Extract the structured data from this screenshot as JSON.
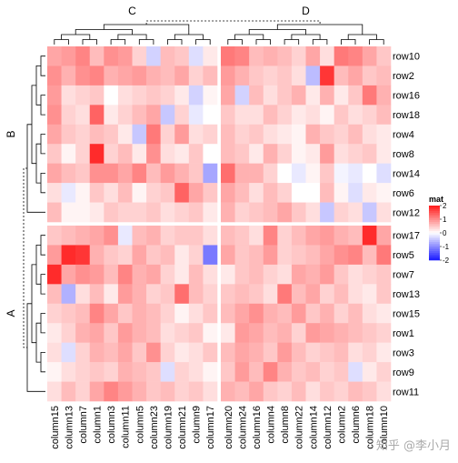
{
  "chart_data": {
    "type": "heatmap",
    "legend": {
      "title": "mat",
      "ticks": [
        "2",
        "1",
        "0",
        "-1",
        "-2"
      ],
      "colors": {
        "low": "#2020ff",
        "mid": "#ffffff",
        "high": "#ff2020"
      }
    },
    "column_groups": [
      {
        "label": "C",
        "columns": [
          "column15",
          "column13",
          "column7",
          "column1",
          "column3",
          "column11",
          "column5",
          "column23",
          "column19",
          "column21",
          "column9",
          "column17"
        ]
      },
      {
        "label": "D",
        "columns": [
          "column20",
          "column24",
          "column16",
          "column4",
          "column8",
          "column22",
          "column14",
          "column12",
          "column2",
          "column6",
          "column18",
          "column10"
        ]
      }
    ],
    "row_groups": [
      {
        "label": "B",
        "rows": [
          "row10",
          "row2",
          "row16",
          "row18",
          "row4",
          "row8",
          "row14",
          "row6",
          "row12"
        ]
      },
      {
        "label": "A",
        "rows": [
          "row17",
          "row5",
          "row7",
          "row13",
          "row15",
          "row1",
          "row3",
          "row9",
          "row11"
        ]
      }
    ],
    "values": [
      [
        0.8,
        0.9,
        1.1,
        0.6,
        1.0,
        0.9,
        0.4,
        -0.4,
        0.6,
        0.5,
        -0.3,
        0.2,
        1.2,
        1.1,
        0.6,
        0.7,
        0.6,
        0.4,
        0.8,
        0.3,
        1.2,
        1.1,
        0.8,
        0.5
      ],
      [
        1.0,
        0.7,
        1.0,
        1.1,
        0.7,
        0.8,
        0.9,
        0.7,
        0.6,
        0.8,
        0.4,
        0.6,
        0.9,
        0.7,
        0.5,
        0.4,
        0.5,
        0.3,
        -0.6,
        1.8,
        0.6,
        0.8,
        0.5,
        0.6
      ],
      [
        0.9,
        0.3,
        0.4,
        0.5,
        0.0,
        0.3,
        0.4,
        0.5,
        0.4,
        0.2,
        -0.4,
        0.1,
        0.8,
        -0.4,
        0.6,
        0.3,
        0.5,
        0.7,
        0.2,
        0.7,
        0.2,
        0.5,
        1.2,
        0.7
      ],
      [
        1.0,
        0.4,
        0.3,
        1.4,
        0.2,
        0.4,
        0.6,
        0.8,
        -0.5,
        0.4,
        -0.2,
        0.0,
        0.5,
        0.3,
        0.3,
        0.6,
        0.4,
        0.2,
        0.3,
        0.1,
        0.5,
        0.3,
        0.4,
        0.6
      ],
      [
        0.8,
        0.5,
        0.4,
        0.6,
        0.5,
        0.2,
        -0.5,
        1.2,
        0.4,
        0.9,
        0.3,
        0.4,
        0.6,
        0.4,
        0.5,
        0.3,
        0.2,
        0.1,
        0.7,
        0.5,
        0.4,
        0.6,
        0.3,
        0.2
      ],
      [
        0.5,
        0.1,
        0.4,
        1.9,
        0.4,
        0.6,
        0.2,
        1.0,
        0.3,
        0.2,
        0.5,
        0.0,
        0.6,
        0.5,
        0.2,
        0.7,
        0.4,
        0.1,
        0.2,
        0.9,
        0.3,
        0.4,
        0.5,
        0.2
      ],
      [
        0.8,
        0.6,
        0.5,
        1.0,
        1.0,
        0.8,
        1.1,
        0.6,
        0.9,
        0.7,
        0.5,
        -0.8,
        1.3,
        0.7,
        0.7,
        0.4,
        0.0,
        -0.2,
        0.1,
        0.5,
        -0.1,
        -0.2,
        0.0,
        -0.3
      ],
      [
        0.3,
        -0.2,
        0.1,
        0.5,
        0.3,
        0.6,
        0.1,
        0.4,
        0.5,
        1.4,
        0.8,
        0.5,
        0.8,
        0.6,
        0.3,
        0.6,
        0.4,
        0.0,
        0.0,
        0.6,
        0.1,
        -0.3,
        0.2,
        0.1
      ],
      [
        0.6,
        0.1,
        0.1,
        0.2,
        0.5,
        0.4,
        0.4,
        0.5,
        0.3,
        0.4,
        0.5,
        0.2,
        0.7,
        0.4,
        0.5,
        0.6,
        0.8,
        0.5,
        0.3,
        -0.5,
        0.4,
        0.3,
        -0.5,
        0.3
      ],
      [
        0.5,
        0.6,
        0.7,
        0.8,
        1.0,
        -0.2,
        0.6,
        0.7,
        0.4,
        0.5,
        0.5,
        0.3,
        0.6,
        0.5,
        0.3,
        1.1,
        0.4,
        0.6,
        0.8,
        0.9,
        0.7,
        0.6,
        1.9,
        0.8
      ],
      [
        0.9,
        1.9,
        1.8,
        0.7,
        0.5,
        0.4,
        0.8,
        0.5,
        0.6,
        0.2,
        0.4,
        -1.2,
        0.8,
        0.5,
        0.6,
        0.9,
        0.4,
        0.5,
        0.6,
        0.8,
        1.0,
        1.1,
        0.6,
        1.2
      ],
      [
        1.9,
        0.8,
        1.0,
        0.9,
        0.6,
        1.1,
        0.7,
        0.8,
        0.4,
        0.2,
        0.6,
        0.3,
        0.2,
        0.5,
        0.6,
        0.4,
        0.3,
        0.8,
        0.7,
        0.9,
        0.5,
        0.3,
        0.4,
        0.5
      ],
      [
        0.6,
        -0.7,
        0.3,
        0.6,
        0.2,
        0.9,
        0.7,
        0.4,
        0.5,
        1.3,
        0.6,
        0.4,
        0.5,
        0.6,
        0.5,
        0.3,
        1.2,
        0.6,
        0.8,
        0.4,
        0.6,
        0.3,
        0.2,
        0.5
      ],
      [
        0.4,
        0.5,
        0.6,
        1.1,
        0.8,
        0.5,
        0.7,
        0.6,
        0.4,
        0.1,
        0.3,
        0.5,
        0.6,
        0.8,
        1.0,
        0.7,
        0.6,
        0.9,
        0.5,
        0.7,
        0.4,
        0.6,
        0.3,
        0.2
      ],
      [
        0.2,
        0.4,
        0.7,
        0.8,
        0.5,
        0.9,
        0.7,
        0.6,
        0.3,
        0.4,
        0.5,
        0.1,
        0.2,
        0.9,
        0.8,
        0.6,
        0.7,
        0.4,
        0.9,
        0.8,
        0.7,
        0.6,
        0.5,
        0.4
      ],
      [
        0.3,
        -0.3,
        0.4,
        0.7,
        0.6,
        0.8,
        0.5,
        1.0,
        0.4,
        0.2,
        0.3,
        0.5,
        0.6,
        0.8,
        0.7,
        0.5,
        0.9,
        0.6,
        0.4,
        0.5,
        0.6,
        0.3,
        0.4,
        0.2
      ],
      [
        0.1,
        0.3,
        0.4,
        0.5,
        0.4,
        0.7,
        0.6,
        0.5,
        -0.3,
        0.4,
        0.3,
        0.1,
        0.5,
        0.9,
        0.6,
        1.1,
        0.7,
        0.5,
        0.6,
        0.4,
        0.5,
        -0.3,
        0.2,
        0.4
      ],
      [
        0.3,
        0.6,
        0.4,
        0.8,
        1.1,
        0.9,
        0.7,
        0.5,
        0.6,
        0.4,
        0.5,
        0.3,
        0.7,
        0.6,
        0.8,
        0.5,
        0.4,
        0.6,
        0.3,
        0.5,
        0.4,
        0.6,
        0.5,
        0.3
      ]
    ]
  },
  "watermark": "知乎 @李小月"
}
